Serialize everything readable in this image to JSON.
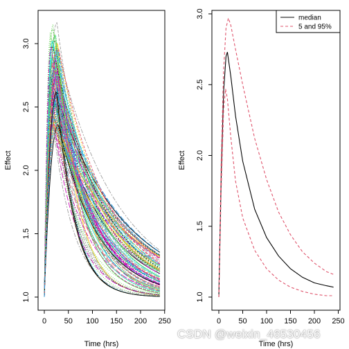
{
  "watermark": "CSDN @weixin_46530456",
  "chart_data": [
    {
      "type": "line",
      "panel": "left",
      "title": "",
      "xlabel": "Time (hrs)",
      "ylabel": "Effect",
      "xlim": [
        0,
        240
      ],
      "ylim": [
        1.0,
        3.2
      ],
      "xticks": [
        0,
        50,
        100,
        150,
        200,
        250
      ],
      "yticks": [
        1.0,
        1.5,
        2.0,
        2.5,
        3.0
      ],
      "description_of_series": "approx. 100 simulated individual effect-time curves drawn in many colors and line styles",
      "series_count": 100,
      "series_colors": [
        "#000000",
        "#df536b",
        "#61d04f",
        "#2297e6",
        "#28e2e5",
        "#cd0bbc",
        "#f5c710",
        "#9e9e9e"
      ],
      "curve_params": {
        "baseline": 1.0,
        "peak_time_range": [
          12,
          30
        ],
        "peak_range": [
          2.35,
          3.17
        ],
        "end_value_range": [
          1.0,
          1.37
        ]
      },
      "grid": false,
      "legend": "none"
    },
    {
      "type": "line",
      "panel": "right",
      "title": "",
      "xlabel": "Time (hrs)",
      "ylabel": "Effect",
      "xlim": [
        0,
        240
      ],
      "ylim": [
        1.0,
        3.0
      ],
      "xticks": [
        0,
        50,
        100,
        150,
        200,
        250
      ],
      "yticks": [
        1.0,
        1.5,
        2.0,
        2.5,
        3.0
      ],
      "grid": false,
      "legend": "top-right",
      "series": [
        {
          "name": "median",
          "color": "#000000",
          "dash": "solid",
          "x": [
            0,
            5,
            10,
            15,
            18,
            25,
            35,
            50,
            75,
            100,
            125,
            150,
            175,
            200,
            225,
            240
          ],
          "y": [
            1.0,
            1.85,
            2.45,
            2.7,
            2.73,
            2.56,
            2.28,
            1.96,
            1.62,
            1.42,
            1.29,
            1.2,
            1.14,
            1.1,
            1.08,
            1.07
          ]
        },
        {
          "name": "5 and 95%",
          "color": "#df536b",
          "dash": "dashed",
          "x": [
            0,
            5,
            10,
            15,
            20,
            25,
            35,
            50,
            75,
            100,
            125,
            150,
            175,
            200,
            225,
            240
          ],
          "y": [
            1.0,
            1.95,
            2.6,
            2.9,
            2.97,
            2.92,
            2.75,
            2.5,
            2.12,
            1.83,
            1.6,
            1.44,
            1.32,
            1.24,
            1.18,
            1.16
          ]
        },
        {
          "name": "5 and 95%",
          "color": "#df536b",
          "dash": "dashed",
          "x": [
            0,
            5,
            10,
            14,
            18,
            25,
            35,
            50,
            75,
            100,
            125,
            150,
            175,
            200,
            225,
            240
          ],
          "y": [
            1.0,
            1.75,
            2.32,
            2.47,
            2.4,
            2.13,
            1.82,
            1.56,
            1.33,
            1.2,
            1.12,
            1.07,
            1.04,
            1.02,
            1.01,
            1.01
          ]
        }
      ],
      "legend_entries": [
        "median",
        "5 and 95%"
      ]
    }
  ]
}
